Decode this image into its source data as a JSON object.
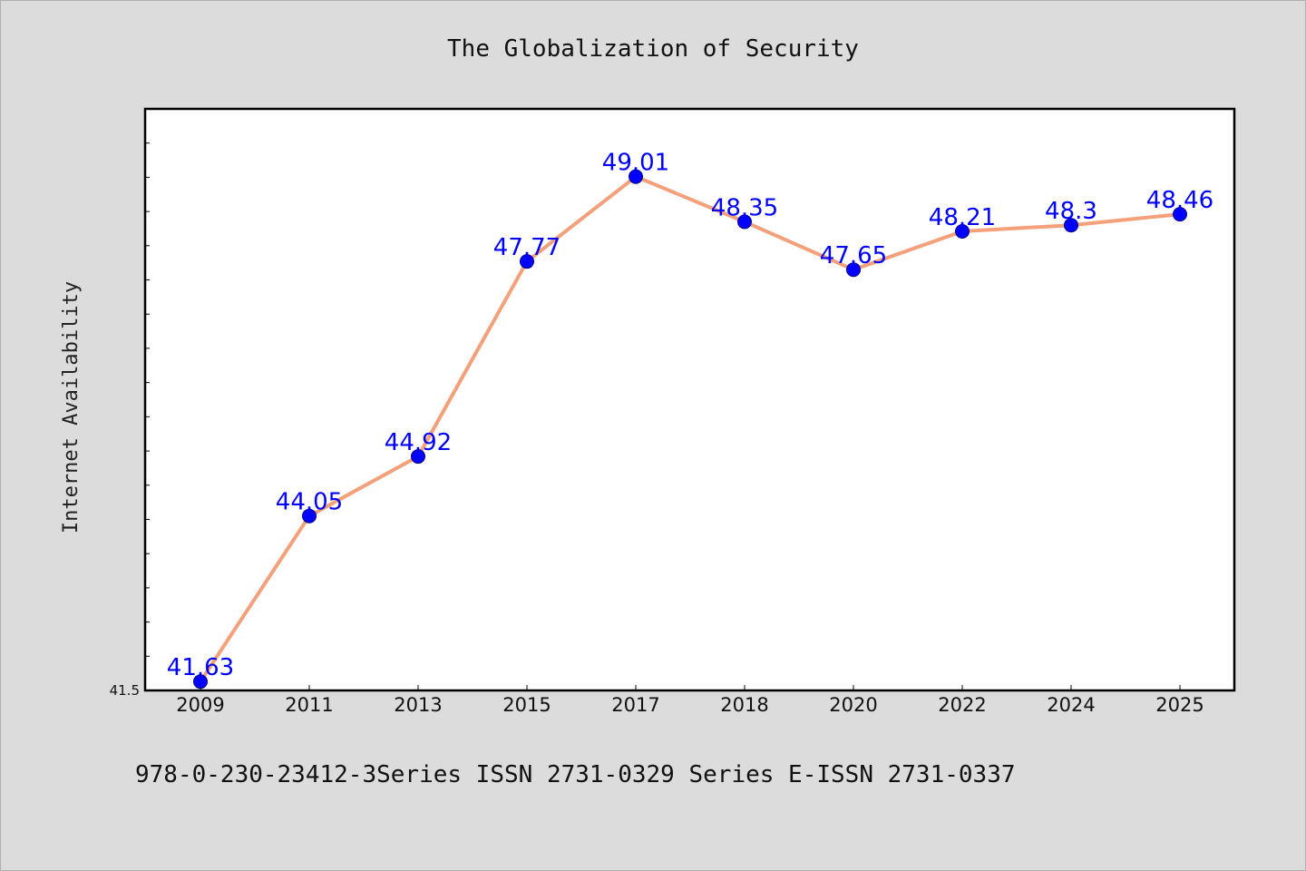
{
  "chart_data": {
    "type": "line",
    "title": "The Globalization of Security",
    "xlabel": "",
    "ylabel": "Internet Availability",
    "categories": [
      "2009",
      "2011",
      "2013",
      "2015",
      "2017",
      "2018",
      "2020",
      "2022",
      "2024",
      "2025"
    ],
    "series": [
      {
        "values": [
          41.63,
          44.05,
          44.92,
          47.77,
          49.01,
          48.35,
          47.65,
          48.21,
          48.3,
          48.46
        ],
        "data_labels": [
          "41.63",
          "44.05",
          "44.92",
          "47.77",
          "49.01",
          "48.35",
          "47.65",
          "48.21",
          "48.3",
          "48.46"
        ]
      }
    ],
    "ylim": [
      41.5,
      50.0
    ],
    "y_tick_labels": [
      "41.5"
    ],
    "grid": false,
    "legend": "none",
    "colors": {
      "line": "#f4a07a",
      "marker": "#0000ff",
      "label": "#0000ff",
      "background": "#dcdcdc",
      "plot_bg": "#ffffff"
    }
  },
  "footer": {
    "text": "978-0-230-23412-3Series ISSN 2731-0329 Series E-ISSN 2731-0337"
  }
}
